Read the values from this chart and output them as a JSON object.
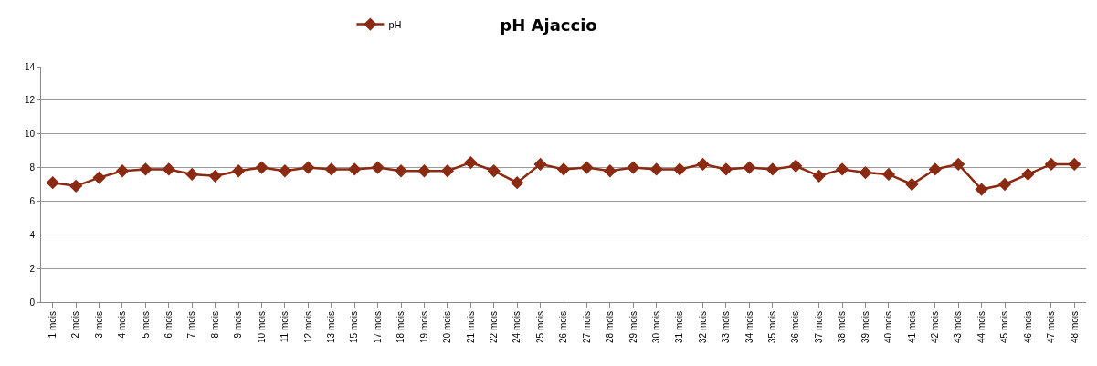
{
  "chart_data": {
    "type": "line",
    "title": "pH Ajaccio",
    "categories": [
      "1 mois",
      "2 mois",
      "3 mois",
      "4 mois",
      "5 mois",
      "6 mois",
      "7 mois",
      "8 mois",
      "9 mois",
      "10 mois",
      "11 mois",
      "12 mois",
      "13 mois",
      "15 mois",
      "17 mois",
      "18 mois",
      "19 mois",
      "20 mois",
      "21 mois",
      "22 mois",
      "24 mois",
      "25 mois",
      "26 mois",
      "27 mois",
      "28 mois",
      "29 mois",
      "30 mois",
      "31 mois",
      "32 mois",
      "33 mois",
      "34 mois",
      "35 mois",
      "36 mois",
      "37 mois",
      "38 mois",
      "39 mois",
      "40 mois",
      "41 mois",
      "42 mois",
      "43 mois",
      "44 mois",
      "45 mois",
      "46 mois",
      "47 mois",
      "48 mois"
    ],
    "series": [
      {
        "name": "pH",
        "color": "#8b2a12",
        "values": [
          7.1,
          6.9,
          7.4,
          7.8,
          7.9,
          7.9,
          7.6,
          7.5,
          7.8,
          8.0,
          7.8,
          8.0,
          7.9,
          7.9,
          8.0,
          7.8,
          7.8,
          7.8,
          8.3,
          7.8,
          7.1,
          8.2,
          7.9,
          8.0,
          7.8,
          8.0,
          7.9,
          7.9,
          8.2,
          7.9,
          8.0,
          7.9,
          8.1,
          7.5,
          7.9,
          7.7,
          7.6,
          7.0,
          7.9,
          8.2,
          6.7,
          7.0,
          7.6,
          8.2,
          8.2
        ]
      }
    ],
    "ylim": [
      0,
      14
    ],
    "yticks": [
      0,
      2,
      4,
      6,
      8,
      10,
      12,
      14
    ],
    "grid": "y",
    "legend": "top",
    "marker": "diamond",
    "line_style": "solid"
  }
}
